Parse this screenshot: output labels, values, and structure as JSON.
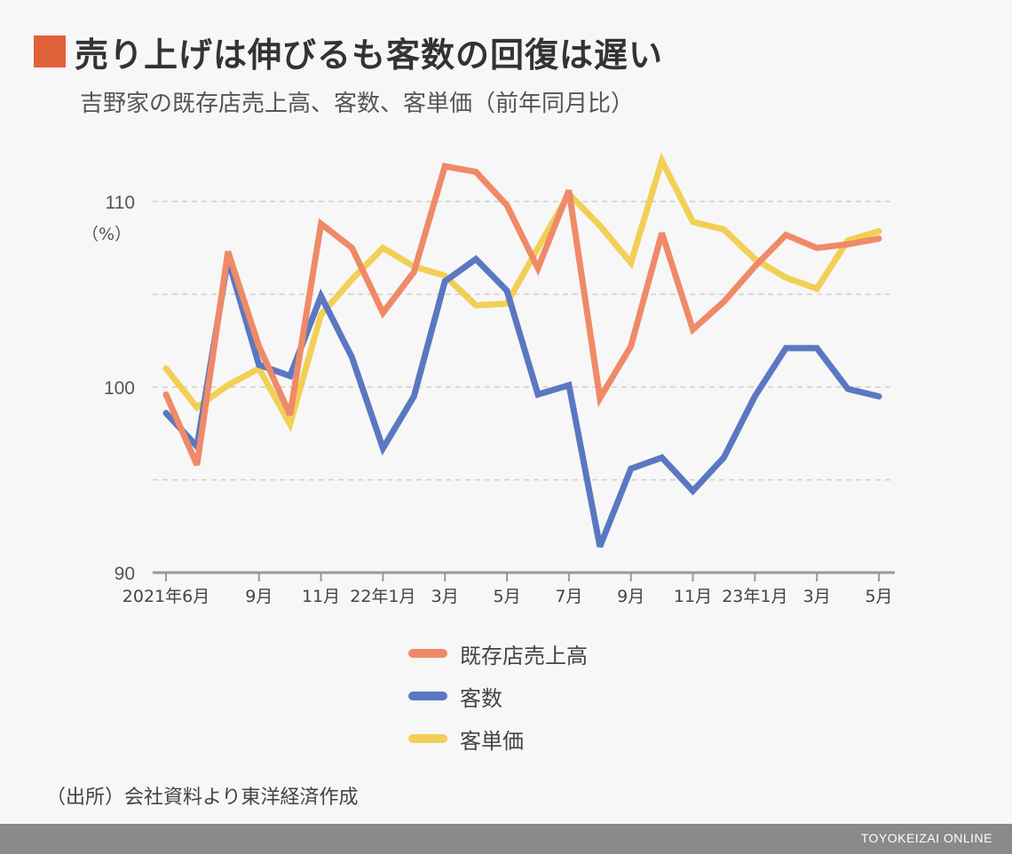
{
  "header": {
    "title": "売り上げは伸びるも客数の回復は遅い",
    "subtitle": "吉野家の既存店売上高、客数、客単価（前年同月比）",
    "accent_color": "#e0623a"
  },
  "chart_data": {
    "type": "line",
    "x": [
      "2021-06",
      "2021-07",
      "2021-08",
      "2021-09",
      "2021-10",
      "2021-11",
      "2021-12",
      "2022-01",
      "2022-02",
      "2022-03",
      "2022-04",
      "2022-05",
      "2022-06",
      "2022-07",
      "2022-08",
      "2022-09",
      "2022-10",
      "2022-11",
      "2022-12",
      "2023-01",
      "2023-02",
      "2023-03",
      "2023-04",
      "2023-05"
    ],
    "tick_labels": [
      {
        "index": 0,
        "label": "2021年6月"
      },
      {
        "index": 3,
        "label": "9月"
      },
      {
        "index": 5,
        "label": "11月"
      },
      {
        "index": 7,
        "label": "22年1月"
      },
      {
        "index": 9,
        "label": "3月"
      },
      {
        "index": 11,
        "label": "5月"
      },
      {
        "index": 13,
        "label": "7月"
      },
      {
        "index": 15,
        "label": "9月"
      },
      {
        "index": 17,
        "label": "11月"
      },
      {
        "index": 19,
        "label": "23年1月"
      },
      {
        "index": 21,
        "label": "3月"
      },
      {
        "index": 23,
        "label": "5月"
      }
    ],
    "y_ticks": [
      90,
      100,
      110
    ],
    "y_unit_label": "（%）",
    "ylim": [
      90,
      112.5
    ],
    "grid": true,
    "series": [
      {
        "name": "客単価",
        "color": "#f2cf55",
        "values": [
          101.0,
          98.9,
          100.1,
          101.0,
          98.0,
          103.9,
          105.8,
          107.5,
          106.5,
          106.0,
          104.4,
          104.5,
          107.5,
          110.4,
          108.7,
          106.7,
          112.2,
          108.9,
          108.5,
          106.9,
          105.9,
          105.3,
          107.9,
          108.4
        ]
      },
      {
        "name": "客数",
        "color": "#5a78c1",
        "values": [
          98.6,
          96.8,
          106.9,
          101.2,
          100.6,
          104.9,
          101.6,
          96.7,
          99.5,
          105.7,
          106.9,
          105.2,
          99.6,
          100.1,
          91.4,
          95.6,
          96.2,
          94.4,
          96.2,
          99.5,
          102.1,
          102.1,
          99.9,
          99.5
        ]
      },
      {
        "name": "既存店売上高",
        "color": "#ef8a68",
        "values": [
          99.6,
          95.8,
          107.3,
          102.2,
          98.5,
          108.8,
          107.5,
          104.0,
          106.2,
          111.9,
          111.6,
          109.8,
          106.4,
          110.6,
          99.4,
          102.2,
          108.3,
          103.1,
          104.6,
          106.5,
          108.2,
          107.5,
          107.7,
          108.0
        ]
      }
    ],
    "legend_order": [
      "既存店売上高",
      "客数",
      "客単価"
    ]
  },
  "source": "（出所）会社資料より東洋経済作成",
  "footer": "TOYOKEIZAI ONLINE"
}
